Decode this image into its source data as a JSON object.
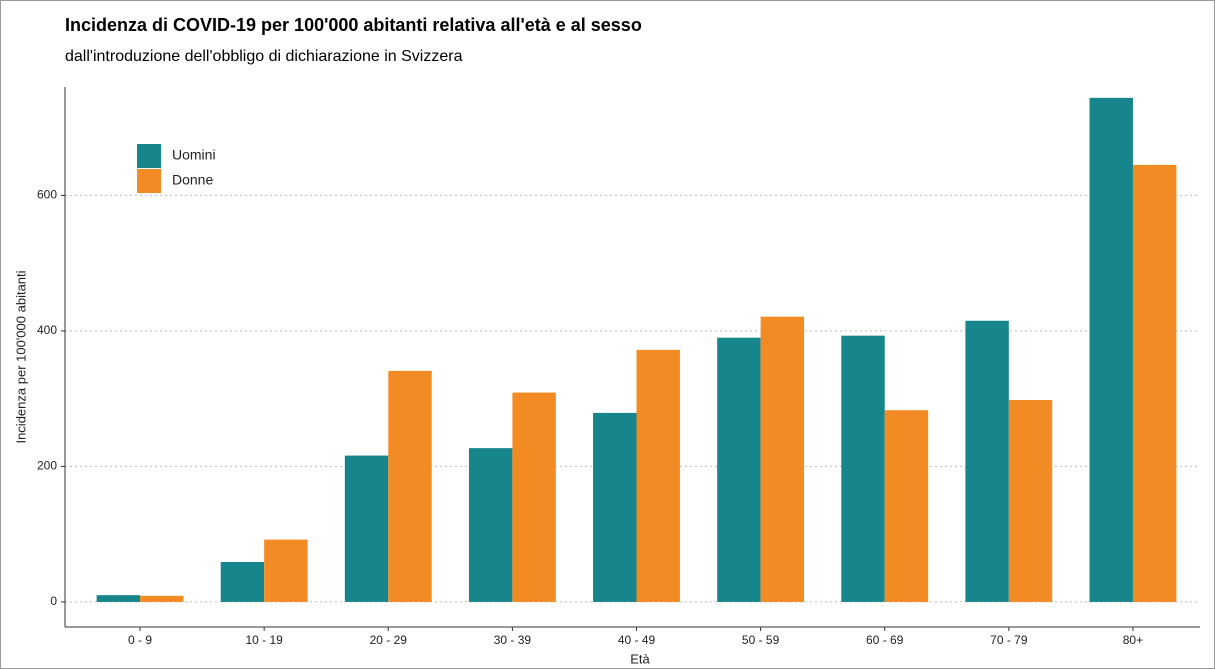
{
  "chart_data": {
    "type": "bar",
    "title": "Incidenza di COVID-19 per 100'000 abitanti relativa all'età e al sesso",
    "subtitle": "dall'introduzione dell'obbligo di dichiarazione in Svizzera",
    "x_label": "Età",
    "y_label": "Incidenza per 100'000 abitanti",
    "categories": [
      "0 - 9",
      "10 - 19",
      "20 - 29",
      "30 - 39",
      "40 - 49",
      "50 - 59",
      "60 - 69",
      "70 - 79",
      "80+"
    ],
    "series": [
      {
        "name": "Uomini",
        "color": "#17868c",
        "values": [
          10,
          59,
          216,
          227,
          279,
          390,
          393,
          415,
          744
        ]
      },
      {
        "name": "Donne",
        "color": "#f28b24",
        "values": [
          9,
          92,
          341,
          309,
          372,
          421,
          283,
          298,
          645
        ]
      }
    ],
    "ylim": [
      -37,
      760
    ],
    "yticks": [
      0,
      200,
      400,
      600
    ],
    "grid": true,
    "legend": "top-left"
  }
}
